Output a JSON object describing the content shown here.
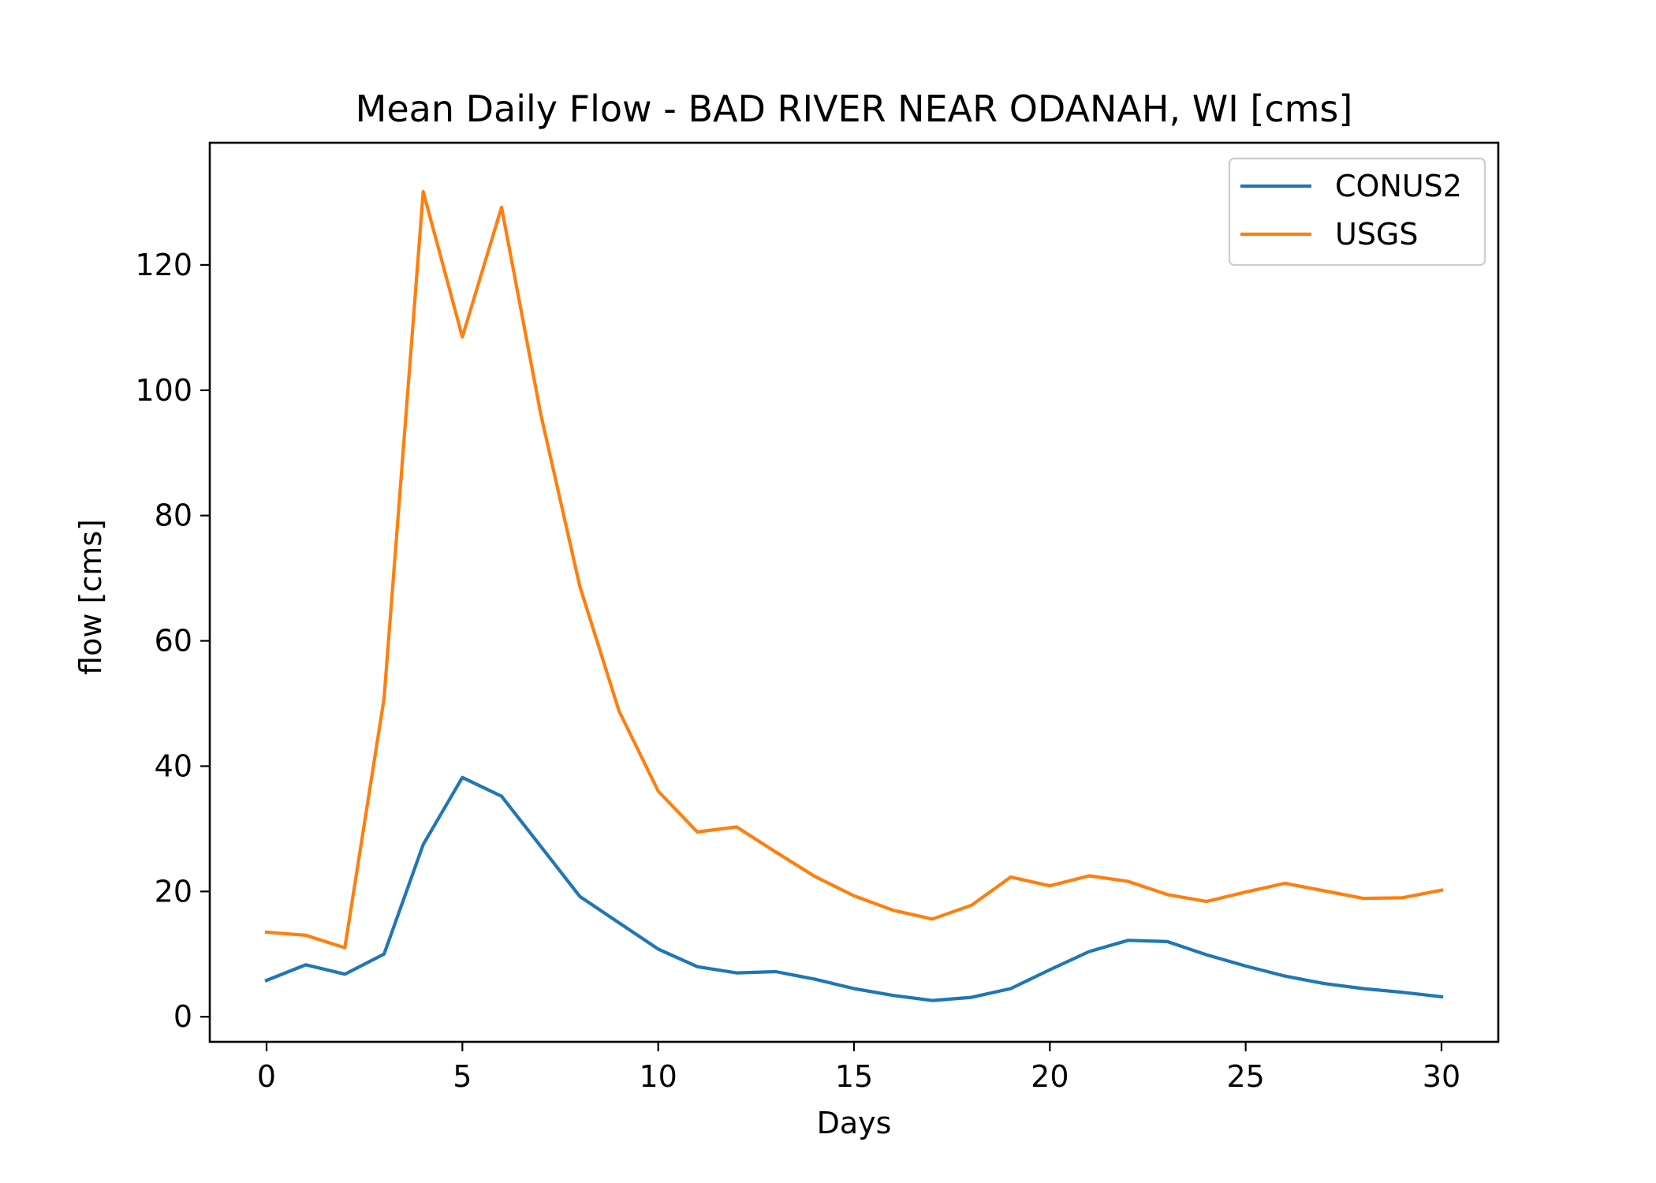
{
  "chart_data": {
    "type": "line",
    "title": "Mean Daily Flow - BAD RIVER NEAR ODANAH, WI [cms]",
    "xlabel": "Days",
    "ylabel": "flow [cms]",
    "xlim": [
      -1.45,
      31.45
    ],
    "ylim": [
      -4,
      139.5
    ],
    "xticks": [
      0,
      5,
      10,
      15,
      20,
      25,
      30
    ],
    "xtick_labels": [
      "0",
      "5",
      "10",
      "15",
      "20",
      "25",
      "30"
    ],
    "yticks": [
      0,
      20,
      40,
      60,
      80,
      100,
      120
    ],
    "ytick_labels": [
      "0",
      "20",
      "40",
      "60",
      "80",
      "100",
      "120"
    ],
    "grid": false,
    "legend_position": "top-right",
    "x": [
      0,
      1,
      2,
      3,
      4,
      5,
      6,
      7,
      8,
      9,
      10,
      11,
      12,
      13,
      14,
      15,
      16,
      17,
      18,
      19,
      20,
      21,
      22,
      23,
      24,
      25,
      26,
      27,
      28,
      29,
      30
    ],
    "series": [
      {
        "name": "CONUS2",
        "color": "#1f77b4",
        "values": [
          5.8,
          8.3,
          6.8,
          10.0,
          27.5,
          38.2,
          35.2,
          27.2,
          19.2,
          15.0,
          10.8,
          8.0,
          7.0,
          7.2,
          6.0,
          4.5,
          3.4,
          2.6,
          3.1,
          4.5,
          7.5,
          10.4,
          12.2,
          12.0,
          9.9,
          8.1,
          6.5,
          5.3,
          4.5,
          3.9,
          3.2
        ]
      },
      {
        "name": "USGS",
        "color": "#ff7f0e",
        "values": [
          13.5,
          13.0,
          11.0,
          50.8,
          131.7,
          108.5,
          129.2,
          96.2,
          68.7,
          48.8,
          36.0,
          29.5,
          30.3,
          26.3,
          22.4,
          19.3,
          17.0,
          15.6,
          17.8,
          22.3,
          20.9,
          22.5,
          21.6,
          19.5,
          18.4,
          19.9,
          21.3,
          20.1,
          18.9,
          19.0,
          20.2
        ]
      }
    ]
  }
}
